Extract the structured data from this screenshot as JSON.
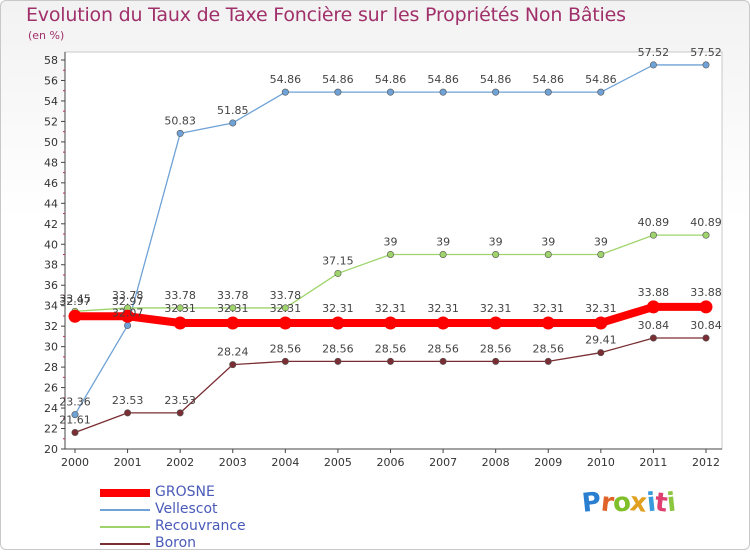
{
  "header": {
    "title": "Evolution du Taux de Taxe Foncière sur les Propriétés Non Bâties",
    "unit": "(en %)"
  },
  "logo": {
    "letters": [
      "P",
      "r",
      "o",
      "x",
      "i",
      "t",
      "i"
    ],
    "colors": [
      "#2a7fd0",
      "#e0632a",
      "#7fbf2a",
      "#e0a020",
      "#3a9bdc",
      "#e04070",
      "#8cc63f"
    ]
  },
  "chart_data": {
    "type": "line",
    "title": "Evolution du Taux de Taxe Foncière sur les Propriétés Non Bâties",
    "ylabel": "(en %)",
    "xlabel": "",
    "ylim": [
      20,
      58
    ],
    "ytick_step": 2,
    "x": [
      "2000",
      "2001",
      "2002",
      "2003",
      "2004",
      "2005",
      "2006",
      "2007",
      "2008",
      "2009",
      "2010",
      "2011",
      "2012"
    ],
    "grid": false,
    "legend_position": "bottom-left",
    "series": [
      {
        "name": "GROSNE",
        "color": "#ff0000",
        "width": 8,
        "values": [
          32.97,
          32.97,
          32.31,
          32.31,
          32.31,
          32.31,
          32.31,
          32.31,
          32.31,
          32.31,
          32.31,
          33.88,
          33.88
        ],
        "labels": [
          "32.97",
          "32.97",
          "32.31",
          "32.31",
          "32.31",
          "32.31",
          "32.31",
          "32.31",
          "32.31",
          "32.31",
          "32.31",
          "33.88",
          "33.88"
        ]
      },
      {
        "name": "Vellescot",
        "color": "#6fa2d6",
        "width": 1.3,
        "values": [
          23.36,
          32.07,
          50.83,
          51.85,
          54.86,
          54.86,
          54.86,
          54.86,
          54.86,
          54.86,
          54.86,
          57.52,
          57.52
        ],
        "labels": [
          "23.36",
          "32.07",
          "50.83",
          "51.85",
          "54.86",
          "54.86",
          "54.86",
          "54.86",
          "54.86",
          "54.86",
          "54.86",
          "57.52",
          "57.52"
        ]
      },
      {
        "name": "Recouvrance",
        "color": "#9ed46b",
        "width": 1.3,
        "values": [
          33.45,
          33.78,
          33.78,
          33.78,
          33.78,
          37.15,
          39,
          39,
          39,
          39,
          39,
          40.89,
          40.89
        ],
        "labels": [
          "33.45",
          "33.78",
          "33.78",
          "33.78",
          "33.78",
          "37.15",
          "39",
          "39",
          "39",
          "39",
          "39",
          "40.89",
          "40.89"
        ]
      },
      {
        "name": "Boron",
        "color": "#7a2e33",
        "width": 1.3,
        "values": [
          21.61,
          23.53,
          23.53,
          28.24,
          28.56,
          28.56,
          28.56,
          28.56,
          28.56,
          28.56,
          29.41,
          30.84,
          30.84
        ],
        "labels": [
          "21.61",
          "23.53",
          "23.53",
          "28.24",
          "28.56",
          "28.56",
          "28.56",
          "28.56",
          "28.56",
          "28.56",
          "29.41",
          "30.84",
          "30.84"
        ]
      }
    ]
  }
}
